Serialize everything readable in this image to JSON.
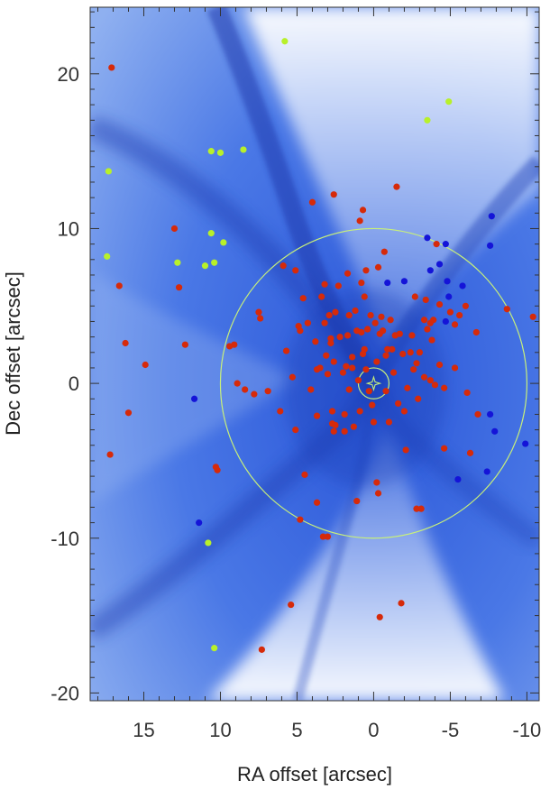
{
  "chart_data": {
    "type": "scatter",
    "title": "",
    "xlabel": "RA offset [arcsec]",
    "ylabel": "Dec offset [arcsec]",
    "xlim": [
      18.5,
      -10.8
    ],
    "ylim": [
      -20.5,
      24.3
    ],
    "x_ticks": [
      15,
      10,
      5,
      0,
      -5,
      -10
    ],
    "x_tick_labels": [
      "15",
      "10",
      "5",
      "0",
      "-5",
      "-10"
    ],
    "y_ticks": [
      20,
      10,
      0,
      -10,
      -20
    ],
    "y_tick_labels": [
      "20",
      "10",
      "0",
      "-10",
      "-20"
    ],
    "grid": false,
    "background": "blue nebula image (bipolar, dark dust lanes)",
    "colors": {
      "red_points": "#d62a0a",
      "blue_points": "#1414d8",
      "green_points": "#b8f02a",
      "circles": "#c8f07a",
      "frame": "#333333"
    },
    "annotations": {
      "center_marker": "star at (0,0)",
      "inner_circle_radius": 1.0,
      "outer_circle_radius": 10.0
    },
    "series": [
      {
        "color": "red",
        "points": [
          [
            17.1,
            20.4
          ],
          [
            17.2,
            -4.6
          ],
          [
            16.6,
            6.3
          ],
          [
            16.2,
            2.6
          ],
          [
            16.0,
            -1.9
          ],
          [
            14.9,
            1.2
          ],
          [
            13.0,
            10.0
          ],
          [
            12.7,
            6.2
          ],
          [
            12.3,
            2.5
          ],
          [
            10.3,
            -5.4
          ],
          [
            10.2,
            -5.6
          ],
          [
            9.4,
            2.4
          ],
          [
            9.1,
            2.5
          ],
          [
            8.9,
            0.0
          ],
          [
            8.4,
            -0.4
          ],
          [
            7.8,
            -0.7
          ],
          [
            7.5,
            4.6
          ],
          [
            7.4,
            4.2
          ],
          [
            6.9,
            -0.5
          ],
          [
            6.1,
            -1.8
          ],
          [
            5.9,
            7.6
          ],
          [
            5.7,
            2.1
          ],
          [
            5.1,
            7.3
          ],
          [
            5.3,
            0.4
          ],
          [
            5.1,
            -3.0
          ],
          [
            4.9,
            3.7
          ],
          [
            4.8,
            3.4
          ],
          [
            4.6,
            5.5
          ],
          [
            4.3,
            3.9
          ],
          [
            4.1,
            -0.4
          ],
          [
            4.5,
            -5.9
          ],
          [
            4.8,
            -8.8
          ],
          [
            4.0,
            11.7
          ],
          [
            3.8,
            2.7
          ],
          [
            3.7,
            -2.1
          ],
          [
            3.7,
            0.9
          ],
          [
            3.7,
            -7.7
          ],
          [
            3.5,
            1.0
          ],
          [
            3.4,
            5.6
          ],
          [
            3.2,
            6.4
          ],
          [
            3.2,
            3.9
          ],
          [
            3.1,
            1.8
          ],
          [
            3.0,
            0.6
          ],
          [
            2.9,
            4.4
          ],
          [
            2.8,
            2.9
          ],
          [
            2.8,
            2.6
          ],
          [
            2.7,
            -1.8
          ],
          [
            2.7,
            -2.6
          ],
          [
            2.6,
            1.4
          ],
          [
            2.6,
            -3.1
          ],
          [
            2.5,
            4.6
          ],
          [
            2.5,
            -2.7
          ],
          [
            2.3,
            6.3
          ],
          [
            2.2,
            3.0
          ],
          [
            2.0,
            0.7
          ],
          [
            1.9,
            -2.0
          ],
          [
            1.9,
            -3.1
          ],
          [
            1.8,
            1.1
          ],
          [
            1.7,
            7.1
          ],
          [
            1.7,
            3.1
          ],
          [
            1.6,
            4.4
          ],
          [
            1.6,
            -0.4
          ],
          [
            1.4,
            1.0
          ],
          [
            1.4,
            1.7
          ],
          [
            1.3,
            -2.8
          ],
          [
            1.2,
            4.7
          ],
          [
            1.1,
            3.4
          ],
          [
            1.0,
            0.2
          ],
          [
            0.9,
            -1.8
          ],
          [
            0.8,
            6.5
          ],
          [
            0.8,
            3.3
          ],
          [
            0.7,
            1.9
          ],
          [
            0.6,
            5.6
          ],
          [
            0.6,
            2.2
          ],
          [
            0.5,
            7.3
          ],
          [
            0.5,
            0.9
          ],
          [
            0.4,
            3.5
          ],
          [
            0.3,
            -0.5
          ],
          [
            0.2,
            4.4
          ],
          [
            0.1,
            -1.4
          ],
          [
            0.0,
            -2.5
          ],
          [
            -0.1,
            3.9
          ],
          [
            -0.2,
            1.4
          ],
          [
            -0.3,
            7.5
          ],
          [
            -0.4,
            3.2
          ],
          [
            -0.5,
            4.3
          ],
          [
            -0.6,
            3.4
          ],
          [
            -0.7,
            8.5
          ],
          [
            -0.8,
            1.8
          ],
          [
            -0.9,
            2.2
          ],
          [
            -0.8,
            -0.5
          ],
          [
            -1.0,
            -2.5
          ],
          [
            -1.1,
            4.1
          ],
          [
            -1.2,
            2.2
          ],
          [
            -1.3,
            0.7
          ],
          [
            -1.4,
            3.1
          ],
          [
            -1.5,
            12.7
          ],
          [
            -1.6,
            -1.3
          ],
          [
            -1.7,
            3.2
          ],
          [
            -1.9,
            1.9
          ],
          [
            -2.0,
            -1.8
          ],
          [
            -2.1,
            -4.3
          ],
          [
            -2.2,
            -0.3
          ],
          [
            -2.4,
            2.0
          ],
          [
            -2.5,
            3.1
          ],
          [
            -2.6,
            0.9
          ],
          [
            -2.7,
            5.6
          ],
          [
            -2.8,
            1.3
          ],
          [
            -2.9,
            -1.0
          ],
          [
            -3.0,
            2.0
          ],
          [
            -3.1,
            -8.1
          ],
          [
            -3.3,
            4.1
          ],
          [
            -3.3,
            0.4
          ],
          [
            -3.4,
            5.4
          ],
          [
            -3.5,
            3.5
          ],
          [
            -3.7,
            3.9
          ],
          [
            -3.7,
            0.2
          ],
          [
            -3.8,
            2.8
          ],
          [
            -3.9,
            4.1
          ],
          [
            -4.0,
            -0.1
          ],
          [
            -4.1,
            9.0
          ],
          [
            -4.3,
            5.1
          ],
          [
            -4.3,
            1.2
          ],
          [
            -4.6,
            -0.3
          ],
          [
            -4.6,
            -4.2
          ],
          [
            -5.0,
            4.6
          ],
          [
            -5.3,
            1.0
          ],
          [
            -5.3,
            3.8
          ],
          [
            -5.6,
            4.4
          ],
          [
            -6.0,
            5.0
          ],
          [
            -6.1,
            -0.6
          ],
          [
            -6.3,
            -4.5
          ],
          [
            -6.7,
            3.3
          ],
          [
            -6.8,
            -2.0
          ],
          [
            -8.7,
            4.8
          ],
          [
            -10.4,
            4.3
          ],
          [
            -2.8,
            -8.1
          ],
          [
            3.3,
            -9.9
          ],
          [
            3.0,
            -9.9
          ],
          [
            1.1,
            -7.6
          ],
          [
            -0.2,
            -6.4
          ],
          [
            -0.3,
            -7.1
          ],
          [
            2.6,
            12.2
          ],
          [
            0.9,
            10.5
          ],
          [
            0.7,
            11.2
          ],
          [
            5.4,
            -14.3
          ],
          [
            -1.8,
            -14.2
          ],
          [
            -0.4,
            -15.1
          ],
          [
            7.3,
            -17.2
          ]
        ]
      },
      {
        "color": "blue",
        "points": [
          [
            -3.5,
            9.4
          ],
          [
            -4.7,
            9.0
          ],
          [
            -7.7,
            10.8
          ],
          [
            -7.6,
            8.9
          ],
          [
            -4.3,
            7.7
          ],
          [
            -3.7,
            7.3
          ],
          [
            -2.0,
            6.6
          ],
          [
            -0.9,
            6.5
          ],
          [
            -4.8,
            6.6
          ],
          [
            -5.8,
            6.3
          ],
          [
            -4.9,
            5.6
          ],
          [
            -4.7,
            4.0
          ],
          [
            11.7,
            -1.0
          ],
          [
            -7.6,
            -2.0
          ],
          [
            -7.9,
            -3.1
          ],
          [
            -9.9,
            -3.9
          ],
          [
            -5.5,
            -6.2
          ],
          [
            -7.4,
            -5.7
          ],
          [
            11.4,
            -9.0
          ]
        ]
      },
      {
        "color": "green",
        "points": [
          [
            5.8,
            22.1
          ],
          [
            -3.5,
            17.0
          ],
          [
            -4.9,
            18.2
          ],
          [
            10.6,
            15.0
          ],
          [
            10.0,
            14.9
          ],
          [
            8.5,
            15.1
          ],
          [
            17.3,
            13.7
          ],
          [
            17.4,
            8.2
          ],
          [
            10.6,
            9.7
          ],
          [
            9.8,
            9.1
          ],
          [
            12.8,
            7.8
          ],
          [
            11.0,
            7.6
          ],
          [
            10.4,
            7.8
          ],
          [
            10.8,
            -10.3
          ],
          [
            10.4,
            -17.1
          ]
        ]
      }
    ]
  }
}
